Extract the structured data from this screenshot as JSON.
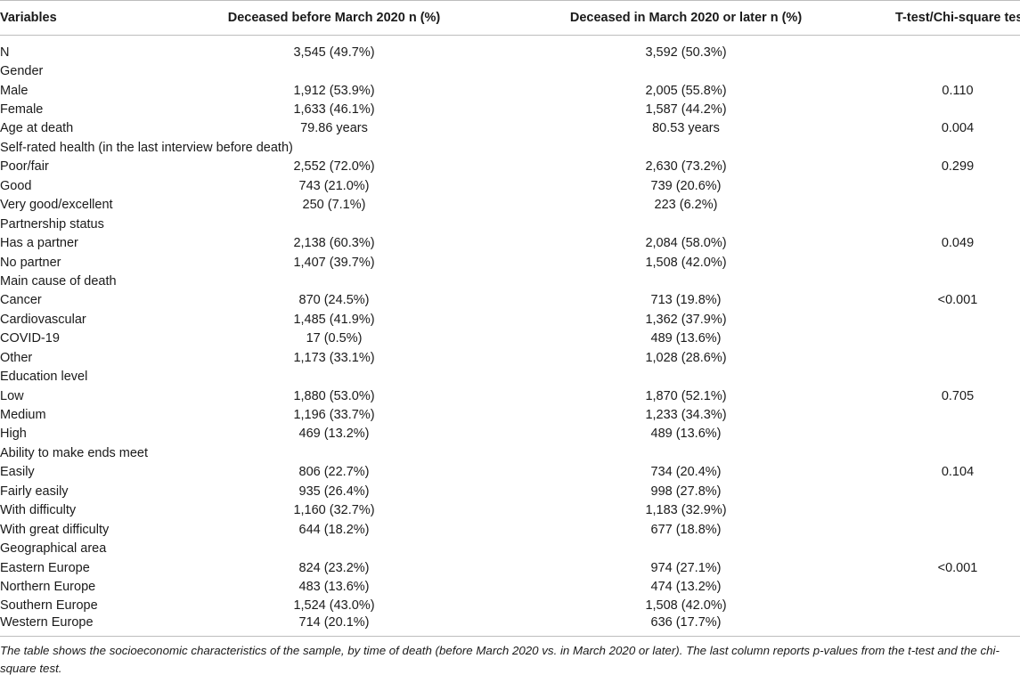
{
  "header": {
    "variables": "Variables",
    "before": "Deceased before March 2020 n (%)",
    "after": "Deceased in March 2020 or later n (%)",
    "test": "T-test/Chi-square test"
  },
  "rows": [
    {
      "label": "N",
      "before": "3,545 (49.7%)",
      "after": "3,592 (50.3%)",
      "p": ""
    },
    {
      "label": "Gender",
      "before": "",
      "after": "",
      "p": ""
    },
    {
      "label": "Male",
      "before": "1,912 (53.9%)",
      "after": "2,005 (55.8%)",
      "p": "0.110"
    },
    {
      "label": "Female",
      "before": "1,633 (46.1%)",
      "after": "1,587 (44.2%)",
      "p": ""
    },
    {
      "label": "Age at death",
      "before": "79.86 years",
      "after": "80.53 years",
      "p": "0.004"
    },
    {
      "label": "Self-rated health (in the last interview before death)",
      "before": "",
      "after": "",
      "p": ""
    },
    {
      "label": "Poor/fair",
      "before": "2,552 (72.0%)",
      "after": "2,630 (73.2%)",
      "p": "0.299"
    },
    {
      "label": "Good",
      "before": "743 (21.0%)",
      "after": "739 (20.6%)",
      "p": ""
    },
    {
      "label": "Very good/excellent",
      "before": "250 (7.1%)",
      "after": "223 (6.2%)",
      "p": ""
    },
    {
      "label": "Partnership status",
      "before": "",
      "after": "",
      "p": ""
    },
    {
      "label": "Has a partner",
      "before": "2,138 (60.3%)",
      "after": "2,084 (58.0%)",
      "p": "0.049"
    },
    {
      "label": "No partner",
      "before": "1,407 (39.7%)",
      "after": "1,508 (42.0%)",
      "p": ""
    },
    {
      "label": "Main cause of death",
      "before": "",
      "after": "",
      "p": ""
    },
    {
      "label": "Cancer",
      "before": "870 (24.5%)",
      "after": "713 (19.8%)",
      "p": "<0.001"
    },
    {
      "label": "Cardiovascular",
      "before": "1,485 (41.9%)",
      "after": "1,362 (37.9%)",
      "p": ""
    },
    {
      "label": "COVID-19",
      "before": "17 (0.5%)",
      "after": "489 (13.6%)",
      "p": ""
    },
    {
      "label": "Other",
      "before": "1,173 (33.1%)",
      "after": "1,028 (28.6%)",
      "p": ""
    },
    {
      "label": "Education level",
      "before": "",
      "after": "",
      "p": ""
    },
    {
      "label": "Low",
      "before": "1,880 (53.0%)",
      "after": "1,870 (52.1%)",
      "p": "0.705"
    },
    {
      "label": "Medium",
      "before": "1,196 (33.7%)",
      "after": "1,233 (34.3%)",
      "p": ""
    },
    {
      "label": "High",
      "before": "469 (13.2%)",
      "after": "489 (13.6%)",
      "p": ""
    },
    {
      "label": "Ability to make ends meet",
      "before": "",
      "after": "",
      "p": ""
    },
    {
      "label": "Easily",
      "before": "806 (22.7%)",
      "after": "734 (20.4%)",
      "p": "0.104"
    },
    {
      "label": "Fairly easily",
      "before": "935 (26.4%)",
      "after": "998 (27.8%)",
      "p": ""
    },
    {
      "label": "With difficulty",
      "before": "1,160 (32.7%)",
      "after": "1,183 (32.9%)",
      "p": ""
    },
    {
      "label": "With great difficulty",
      "before": "644 (18.2%)",
      "after": "677 (18.8%)",
      "p": ""
    },
    {
      "label": "Geographical area",
      "before": "",
      "after": "",
      "p": ""
    },
    {
      "label": "Eastern Europe",
      "before": "824 (23.2%)",
      "after": "974 (27.1%)",
      "p": "<0.001"
    },
    {
      "label": "Northern Europe",
      "before": "483 (13.6%)",
      "after": "474 (13.2%)",
      "p": ""
    },
    {
      "label": "Southern Europe",
      "before": "1,524 (43.0%)",
      "after": "1,508 (42.0%)",
      "p": ""
    },
    {
      "label": "Western Europe",
      "before": "714 (20.1%)",
      "after": "636 (17.7%)",
      "p": ""
    }
  ],
  "caption": "The table shows the socioeconomic characteristics of the sample, by time of death (before March 2020 vs. in March 2020 or later). The last column reports p-values from the t-test and the chi-square test."
}
